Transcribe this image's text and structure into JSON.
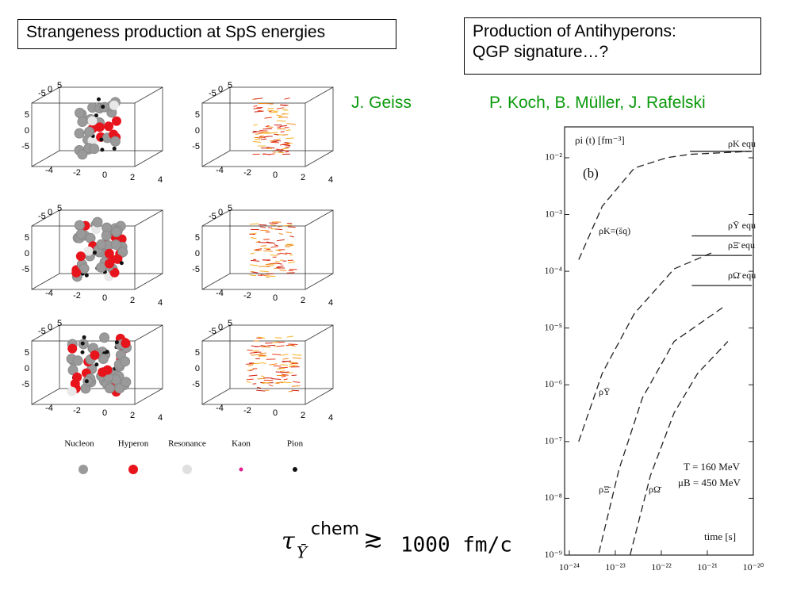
{
  "header": {
    "left_title": "Strangeness production at SpS energies",
    "right_title": [
      "Production of Antihyperons:",
      "QGP signature…?"
    ],
    "left_author": "J. Geiss",
    "right_author": "P. Koch, B. Müller, J. Rafelski"
  },
  "panels": {
    "depth_ticks": [
      "-5",
      "0",
      "5"
    ],
    "vertical_ticks": [
      "5",
      "0",
      "-5"
    ],
    "horizontal_ticks": [
      "-4",
      "-2",
      "0",
      "2",
      "4"
    ]
  },
  "legend": {
    "items": [
      {
        "label": "Nucleon",
        "color": "#9a9a9a"
      },
      {
        "label": "Hyperon",
        "color": "#e8141c"
      },
      {
        "label": "Resonance",
        "color": "#e0e0e0"
      },
      {
        "label": "Kaon",
        "color": "#e0208c"
      },
      {
        "label": "Pion",
        "color": "#111111"
      }
    ]
  },
  "formula": {
    "symbol": "τ",
    "superscript": "chem",
    "subscript": "Ȳ",
    "relation": "≳",
    "value": "1000 fm/c"
  },
  "chart_data": {
    "type": "line",
    "log_x": true,
    "log_y": true,
    "xlim": [
      7.9e-25,
      1e-20
    ],
    "ylim": [
      1e-09,
      0.035
    ],
    "xticks": [
      {
        "value": 1e-24,
        "label": "10⁻²⁴"
      },
      {
        "value": 1e-23,
        "label": "10⁻²³"
      },
      {
        "value": 1e-22,
        "label": "10⁻²²"
      },
      {
        "value": 1e-21,
        "label": "10⁻²¹"
      },
      {
        "value": 1e-20,
        "label": "10⁻²⁰"
      }
    ],
    "yticks": [
      {
        "value": 0.01,
        "label": "10⁻²"
      },
      {
        "value": 0.001,
        "label": "10⁻³"
      },
      {
        "value": 0.0001,
        "label": "10⁻⁴"
      },
      {
        "value": 1e-05,
        "label": "10⁻⁵"
      },
      {
        "value": 1e-06,
        "label": "10⁻⁶"
      },
      {
        "value": 1e-07,
        "label": "10⁻⁷"
      },
      {
        "value": 1e-08,
        "label": "10⁻⁸"
      },
      {
        "value": 1e-09,
        "label": "10⁻⁹"
      }
    ],
    "y_label": "ρi (t) [fm⁻³]",
    "panel_label": "(b)",
    "annotations": [
      "T = 160 MeV",
      "μB = 450 MeV"
    ],
    "x_label": "time [s]",
    "series": [
      {
        "name": "ρK=(s̄q)",
        "color": "#222222",
        "dashed": true,
        "x": [
          1.6e-24,
          5.2e-24,
          2.6e-23,
          1.3e-22,
          4.2e-22,
          9.3e-21
        ],
        "values": [
          0.00016,
          0.0014,
          0.0066,
          0.01,
          0.0115,
          0.013
        ]
      },
      {
        "name": "ρȲ",
        "color": "#222222",
        "dashed": true,
        "x": [
          1.6e-24,
          5.2e-24,
          2.6e-23,
          1.9e-22,
          1.4e-21
        ],
        "values": [
          1e-07,
          1.6e-06,
          1.8e-05,
          0.00011,
          0.00022
        ]
      },
      {
        "name": "ρΞ̄",
        "color": "#222222",
        "dashed": true,
        "x": [
          4.4e-24,
          1.2e-23,
          3.9e-23,
          1.9e-22,
          2.5e-21
        ],
        "values": [
          1.1e-09,
          3.2e-08,
          5.9e-07,
          5.8e-06,
          2.5e-05
        ]
      },
      {
        "name": "ρΩ̄",
        "color": "#222222",
        "dashed": true,
        "x": [
          2.1e-23,
          5.8e-23,
          1.9e-22,
          6.2e-22,
          2.8e-21
        ],
        "values": [
          1e-09,
          2.5e-08,
          3.2e-07,
          1.6e-06,
          5.8e-06
        ]
      },
      {
        "name": "ρK equ",
        "color": "#222222",
        "dashed": false,
        "x": [
          4.2e-22,
          9.3e-21
        ],
        "values": [
          0.013,
          0.013
        ]
      },
      {
        "name": "ρȲ equ",
        "color": "#222222",
        "dashed": false,
        "x": [
          4.6e-22,
          9.3e-21
        ],
        "values": [
          0.00042,
          0.00042
        ]
      },
      {
        "name": "ρΞ̄ equ",
        "color": "#222222",
        "dashed": false,
        "x": [
          4.6e-22,
          9.3e-21
        ],
        "values": [
          0.00019,
          0.00019
        ]
      },
      {
        "name": "ρΩ̄ equ",
        "color": "#222222",
        "dashed": false,
        "x": [
          4.6e-22,
          9.3e-21
        ],
        "values": [
          5.6e-05,
          5.6e-05
        ]
      }
    ]
  }
}
